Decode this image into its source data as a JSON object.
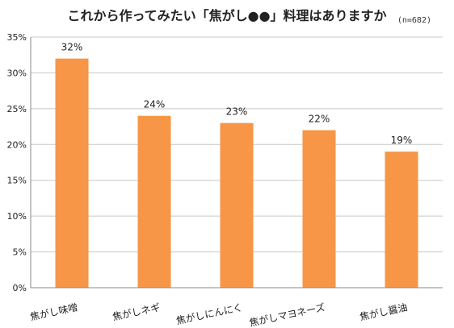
{
  "chart_data": {
    "type": "bar",
    "title": "これから作ってみたい「焦がし●●」料理はありますか",
    "note": "(n=682)",
    "categories": [
      "焦がし味噌",
      "焦がしネギ",
      "焦がしにんにく",
      "焦がしマヨネーズ",
      "焦がし醤油"
    ],
    "values": [
      32,
      24,
      23,
      22,
      19
    ],
    "data_labels": [
      "32%",
      "24%",
      "23%",
      "22%",
      "19%"
    ],
    "y_ticks": [
      "0%",
      "5%",
      "10%",
      "15%",
      "20%",
      "25%",
      "30%",
      "35%"
    ],
    "ylim": [
      0,
      35
    ],
    "grid": true,
    "legend": "none",
    "colors": {
      "bar": "#F79646",
      "grid": "#C8C8C8",
      "axis": "#888888"
    }
  }
}
